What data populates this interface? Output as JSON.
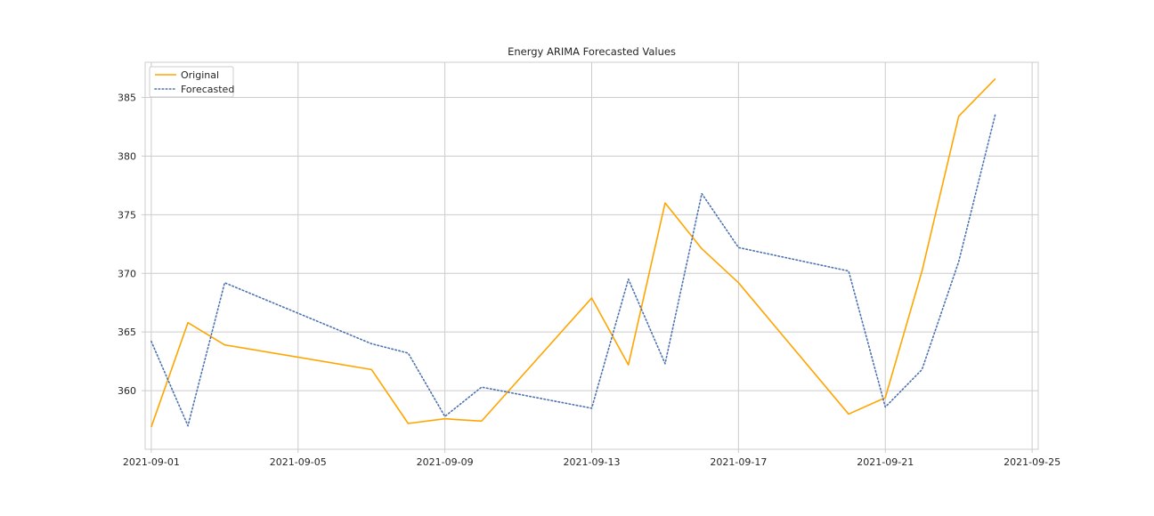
{
  "chart_data": {
    "type": "line",
    "title": "Energy ARIMA Forecasted Values",
    "xlabel": "",
    "ylabel": "",
    "x_ticks": [
      "2021-09-01",
      "2021-09-05",
      "2021-09-09",
      "2021-09-13",
      "2021-09-17",
      "2021-09-21",
      "2021-09-25"
    ],
    "y_ticks": [
      360,
      365,
      370,
      375,
      380,
      385
    ],
    "xlim": [
      "2021-08-31T20:00",
      "2021-09-25T04:00"
    ],
    "ylim": [
      355.0,
      388.0
    ],
    "grid": true,
    "legend_position": "upper left",
    "series": [
      {
        "name": "Original",
        "color": "#ffa500",
        "style": "solid",
        "points": [
          {
            "x": "2021-09-01",
            "y": 356.9
          },
          {
            "x": "2021-09-02",
            "y": 365.8
          },
          {
            "x": "2021-09-03",
            "y": 363.9
          },
          {
            "x": "2021-09-07",
            "y": 361.8
          },
          {
            "x": "2021-09-08",
            "y": 357.2
          },
          {
            "x": "2021-09-09",
            "y": 357.6
          },
          {
            "x": "2021-09-10",
            "y": 357.4
          },
          {
            "x": "2021-09-13",
            "y": 367.9
          },
          {
            "x": "2021-09-14",
            "y": 362.2
          },
          {
            "x": "2021-09-15",
            "y": 376.0
          },
          {
            "x": "2021-09-16",
            "y": 372.1
          },
          {
            "x": "2021-09-17",
            "y": 369.2
          },
          {
            "x": "2021-09-20",
            "y": 358.0
          },
          {
            "x": "2021-09-21",
            "y": 359.4
          },
          {
            "x": "2021-09-22",
            "y": 370.2
          },
          {
            "x": "2021-09-23",
            "y": 383.4
          },
          {
            "x": "2021-09-24",
            "y": 386.6
          }
        ]
      },
      {
        "name": "Forecasted",
        "color": "#4c72b0",
        "style": "dotted",
        "points": [
          {
            "x": "2021-09-01",
            "y": 364.2
          },
          {
            "x": "2021-09-02",
            "y": 357.0
          },
          {
            "x": "2021-09-03",
            "y": 369.2
          },
          {
            "x": "2021-09-07",
            "y": 364.0
          },
          {
            "x": "2021-09-08",
            "y": 363.2
          },
          {
            "x": "2021-09-09",
            "y": 357.8
          },
          {
            "x": "2021-09-10",
            "y": 360.3
          },
          {
            "x": "2021-09-13",
            "y": 358.5
          },
          {
            "x": "2021-09-14",
            "y": 369.5
          },
          {
            "x": "2021-09-15",
            "y": 362.3
          },
          {
            "x": "2021-09-16",
            "y": 376.8
          },
          {
            "x": "2021-09-17",
            "y": 372.2
          },
          {
            "x": "2021-09-20",
            "y": 370.2
          },
          {
            "x": "2021-09-21",
            "y": 358.6
          },
          {
            "x": "2021-09-22",
            "y": 361.8
          },
          {
            "x": "2021-09-23",
            "y": 371.0
          },
          {
            "x": "2021-09-24",
            "y": 383.6
          }
        ]
      }
    ],
    "colors": {
      "background": "#ffffff",
      "grid": "#cccccc",
      "axes_edge": "#cccccc",
      "text": "#262626"
    }
  }
}
